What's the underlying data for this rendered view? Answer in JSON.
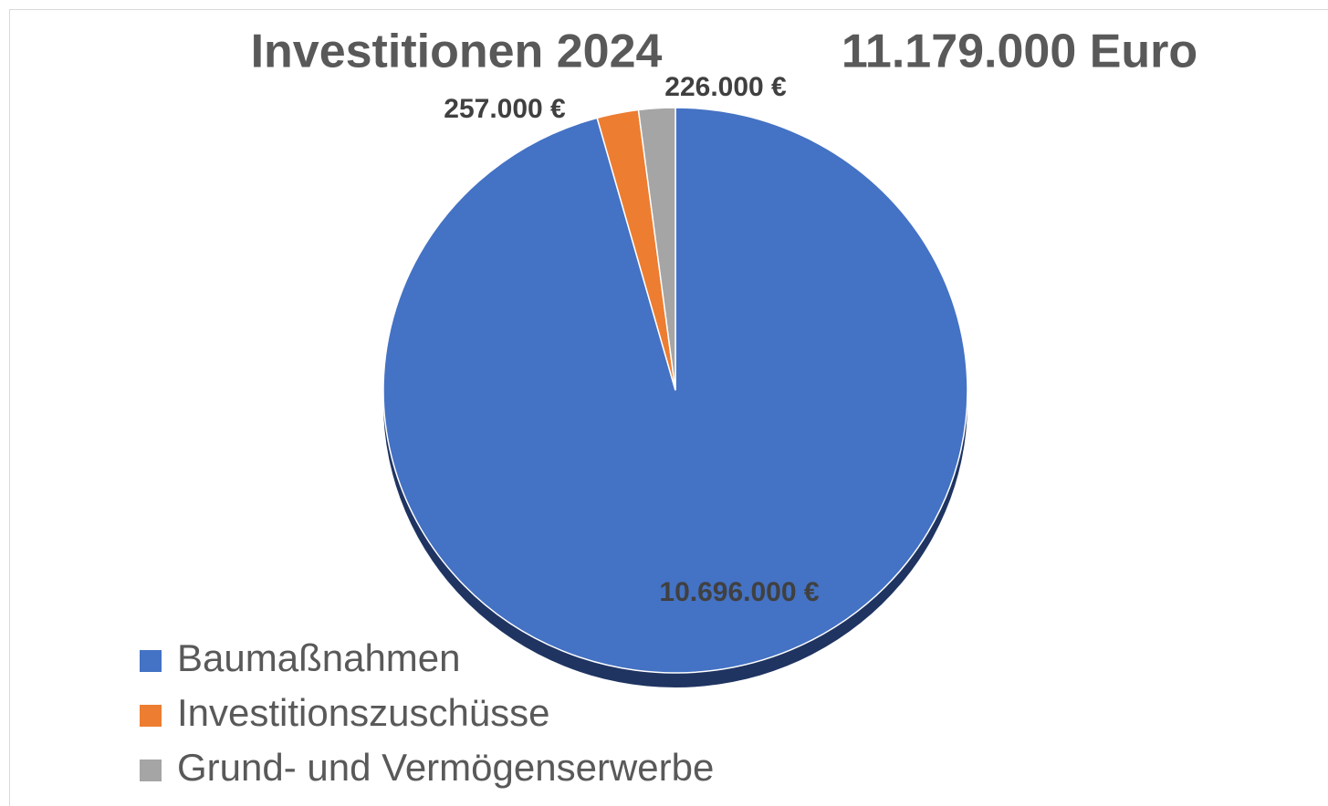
{
  "chart_data": {
    "type": "pie",
    "title": "Investitionen 2024",
    "subtitle": "11.179.000 Euro",
    "categories": [
      "Baumaßnahmen",
      "Investitionszuschüsse",
      "Grund- und Vermögenserwerbe"
    ],
    "values": [
      10696000,
      257000,
      226000
    ],
    "value_labels": [
      "10.696.000 €",
      "257.000 €",
      "226.000 €"
    ],
    "colors": [
      "#4472c4",
      "#ed7d31",
      "#a5a5a5"
    ],
    "legend": "bottom-left"
  }
}
